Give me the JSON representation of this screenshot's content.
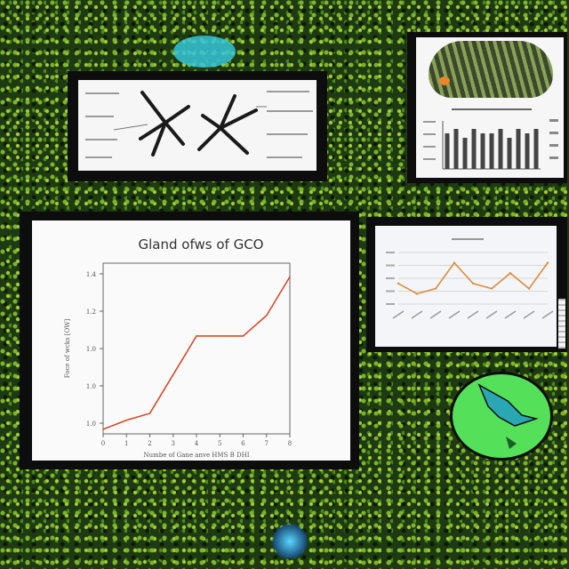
{
  "main_chart": {
    "title": "Gland ofws of GCO",
    "ylabel": "Foce of wcks [OW]",
    "xlabel": "Numbe of Gane anve HMS B DHI",
    "y_ticks": [
      "1.4",
      "1.2",
      "1.0",
      "1.0",
      "1.0"
    ],
    "x_ticks": [
      "0",
      "1",
      "2",
      "3",
      "4",
      "5",
      "6",
      "7",
      "8"
    ]
  },
  "chart_data": [
    {
      "type": "line",
      "title": "Gland ofws of GCO",
      "xlabel": "Numbe of Gane anve HMS B DHI",
      "ylabel": "Foce of wcks [OW]",
      "x": [
        0,
        1,
        2,
        3,
        4,
        5,
        6,
        7,
        8
      ],
      "y": [
        0.2,
        0.6,
        0.9,
        2.6,
        4.3,
        4.3,
        4.3,
        5.2,
        6.9
      ],
      "xlim": [
        0,
        8
      ],
      "ylim": [
        0,
        7.5
      ],
      "color": "#d94a2a",
      "grid": false
    },
    {
      "type": "line",
      "x": [
        0,
        1,
        2,
        3,
        4,
        5,
        6,
        7,
        8
      ],
      "y": [
        4,
        2,
        3,
        8,
        4,
        3,
        6,
        3,
        8
      ],
      "color": "#e08a3a",
      "grid": true
    },
    {
      "type": "bar",
      "values": [
        8,
        9,
        7,
        9,
        8,
        8,
        9,
        7,
        9,
        8,
        9
      ],
      "color": "#444444"
    }
  ],
  "colors": {
    "background": "#2c5a18",
    "panel": "#0d0d0d",
    "card": "#f6f6f6",
    "accent_cyan": "#35c6d8",
    "accent_green": "#55e05a",
    "line_red": "#d94a2a",
    "line_orange": "#e08a3a"
  }
}
